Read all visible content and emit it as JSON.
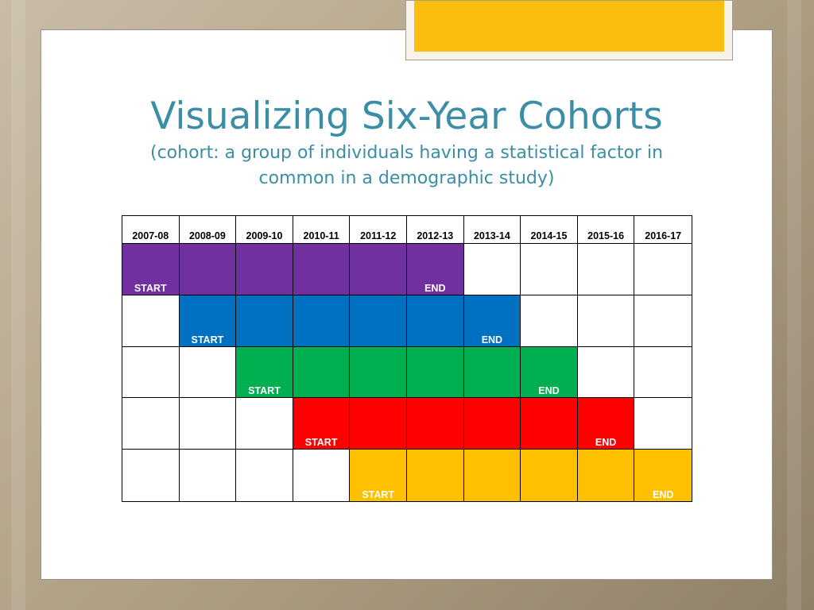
{
  "slide": {
    "title": "Visualizing Six-Year Cohorts",
    "subtitle": "(cohort: a group of individuals having a statistical factor in common in a demographic study)"
  },
  "colors": {
    "title_text": "#3b8ea5",
    "accent_tab": "#fbbd0e",
    "empty_cell": "#ffffff"
  },
  "table": {
    "years": [
      "2007-08",
      "2008-09",
      "2009-10",
      "2010-11",
      "2011-12",
      "2012-13",
      "2013-14",
      "2014-15",
      "2015-16",
      "2016-17"
    ],
    "start_label": "START",
    "end_label": "END",
    "cohorts": [
      {
        "start_year": "2007-08",
        "end_year": "2012-13",
        "color": "#7030a0"
      },
      {
        "start_year": "2008-09",
        "end_year": "2013-14",
        "color": "#0070c0"
      },
      {
        "start_year": "2009-10",
        "end_year": "2014-15",
        "color": "#00b050"
      },
      {
        "start_year": "2010-11",
        "end_year": "2015-16",
        "color": "#ff0000"
      },
      {
        "start_year": "2011-12",
        "end_year": "2016-17",
        "color": "#ffc000"
      }
    ]
  }
}
